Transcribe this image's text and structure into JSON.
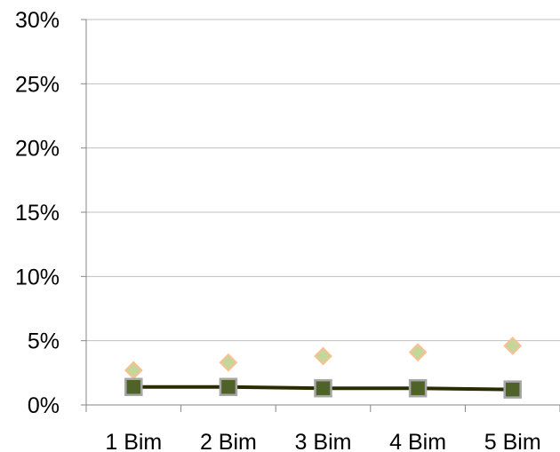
{
  "chart_data": {
    "type": "line",
    "categories": [
      "1 Bim",
      "2 Bim",
      "3 Bim",
      "4 Bim",
      "5 Bim"
    ],
    "y_tick_labels": [
      "0%",
      "5%",
      "10%",
      "15%",
      "20%",
      "25%",
      "30%"
    ],
    "ylim": [
      0,
      30
    ],
    "grid": true,
    "legend": "none",
    "series": [
      {
        "values": [
          2.7,
          3.3,
          3.8,
          4.1,
          4.6
        ],
        "marker": "diamond",
        "line": false,
        "color": "#c4d79b",
        "edge_color": "#fac090"
      },
      {
        "values": [
          1.4,
          1.4,
          1.3,
          1.3,
          1.2
        ],
        "marker": "square",
        "line": true,
        "color": "#4f6228",
        "edge_color": "#a6a6a6",
        "line_color": "#2b2b00"
      }
    ],
    "colors": {
      "gridline": "#bfbfbf",
      "axis": "#868686"
    }
  }
}
